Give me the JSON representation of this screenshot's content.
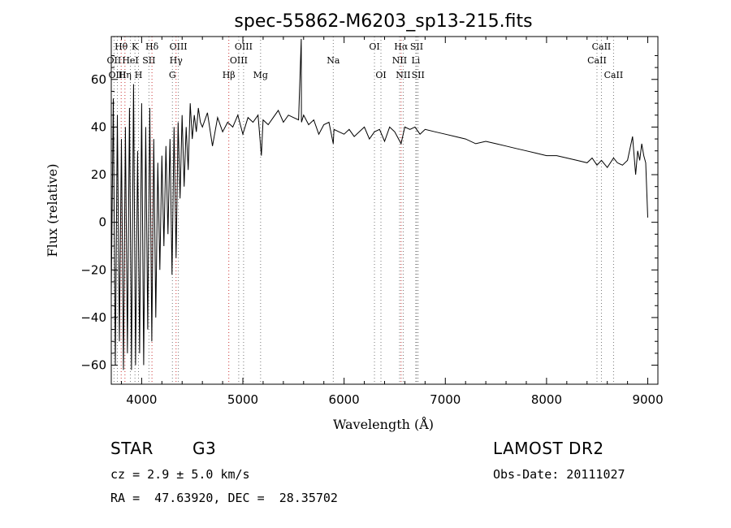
{
  "chart_data": {
    "type": "line",
    "title": "spec-55862-M6203_sp13-215.fits",
    "xlabel": "Wavelength (Å)",
    "ylabel": "Flux (relative)",
    "xlim": [
      3700,
      9100
    ],
    "ylim": [
      -68,
      78
    ],
    "x_ticks": [
      4000,
      5000,
      6000,
      7000,
      8000,
      9000
    ],
    "y_ticks": [
      -60,
      -40,
      -20,
      0,
      20,
      40,
      60
    ],
    "grid": false,
    "legend": "none",
    "series": [
      {
        "x": [
          3700,
          3720,
          3740,
          3760,
          3780,
          3800,
          3820,
          3840,
          3860,
          3880,
          3900,
          3920,
          3940,
          3960,
          3980,
          4000,
          4020,
          4040,
          4060,
          4080,
          4100,
          4120,
          4140,
          4160,
          4180,
          4200,
          4220,
          4240,
          4260,
          4280,
          4300,
          4320,
          4340,
          4360,
          4380,
          4400,
          4420,
          4440,
          4460,
          4480,
          4500,
          4520,
          4540,
          4560,
          4580,
          4600,
          4650,
          4700,
          4750,
          4800,
          4850,
          4900,
          4950,
          5000,
          5050,
          5100,
          5150,
          5183,
          5200,
          5250,
          5300,
          5350,
          5400,
          5450,
          5500,
          5550,
          5577,
          5578,
          5579,
          5600,
          5650,
          5700,
          5750,
          5800,
          5850,
          5893,
          5900,
          5950,
          6000,
          6050,
          6100,
          6150,
          6200,
          6250,
          6300,
          6350,
          6400,
          6450,
          6500,
          6563,
          6600,
          6650,
          6700,
          6750,
          6800,
          6900,
          7000,
          7100,
          7200,
          7300,
          7400,
          7500,
          7600,
          7700,
          7800,
          7900,
          8000,
          8100,
          8200,
          8300,
          8400,
          8450,
          8498,
          8542,
          8600,
          8662,
          8700,
          8750,
          8800,
          8850,
          8880,
          8900,
          8920,
          8940,
          8960,
          8980,
          9000
        ],
        "y": [
          -30,
          52,
          -60,
          45,
          -50,
          35,
          -62,
          40,
          -55,
          48,
          -62,
          58,
          -60,
          30,
          -55,
          50,
          -60,
          40,
          -45,
          48,
          -50,
          35,
          -40,
          25,
          -20,
          28,
          -10,
          32,
          -5,
          35,
          -22,
          40,
          -15,
          42,
          10,
          45,
          15,
          40,
          22,
          50,
          35,
          45,
          38,
          48,
          42,
          40,
          46,
          32,
          44,
          38,
          42,
          40,
          45,
          37,
          44,
          42,
          45,
          28,
          43,
          41,
          44,
          47,
          42,
          45,
          44,
          43,
          77,
          44,
          42,
          45,
          41,
          43,
          37,
          41,
          42,
          33,
          39,
          38,
          37,
          39,
          36,
          38,
          40,
          35,
          38,
          39,
          34,
          40,
          38,
          33,
          40,
          39,
          40,
          37,
          39,
          38,
          37,
          36,
          35,
          33,
          34,
          33,
          32,
          31,
          30,
          29,
          28,
          28,
          27,
          26,
          25,
          27,
          24,
          26,
          23,
          27,
          25,
          24,
          26,
          36,
          20,
          30,
          26,
          33,
          28,
          25,
          2
        ]
      }
    ],
    "line_markers": [
      {
        "label": "Hθ",
        "wl": 3798,
        "row": 0,
        "color": "#cc3333"
      },
      {
        "label": "OII",
        "wl": 3727,
        "row": 1,
        "color": "#777777"
      },
      {
        "label": "OIII",
        "wl": 3760,
        "row": 2,
        "color": "#777777"
      },
      {
        "label": "K",
        "wl": 3934,
        "row": 0,
        "color": "#777777"
      },
      {
        "label": "HeI",
        "wl": 3889,
        "row": 1,
        "color": "#777777"
      },
      {
        "label": "Hη",
        "wl": 3835,
        "row": 2,
        "color": "#cc3333"
      },
      {
        "label": "SII",
        "wl": 4072,
        "row": 1,
        "color": "#777777"
      },
      {
        "label": "H",
        "wl": 3969,
        "row": 2,
        "color": "#777777"
      },
      {
        "label": "Hδ",
        "wl": 4102,
        "row": 0,
        "color": "#cc3333"
      },
      {
        "label": "OIII",
        "wl": 4363,
        "row": 0,
        "color": "#777777"
      },
      {
        "label": "Hγ",
        "wl": 4340,
        "row": 1,
        "color": "#cc3333"
      },
      {
        "label": "G",
        "wl": 4304,
        "row": 2,
        "color": "#777777"
      },
      {
        "label": "OIII",
        "wl": 5007,
        "row": 0,
        "color": "#777777"
      },
      {
        "label": "OIII",
        "wl": 4959,
        "row": 1,
        "color": "#777777"
      },
      {
        "label": "Hβ",
        "wl": 4861,
        "row": 2,
        "color": "#cc3333"
      },
      {
        "label": "Mg",
        "wl": 5175,
        "row": 2,
        "color": "#777777"
      },
      {
        "label": "Na",
        "wl": 5893,
        "row": 1,
        "color": "#777777"
      },
      {
        "label": "OI",
        "wl": 6300,
        "row": 0,
        "color": "#777777"
      },
      {
        "label": "OI",
        "wl": 6364,
        "row": 2,
        "color": "#777777"
      },
      {
        "label": "Hα",
        "wl": 6563,
        "row": 0,
        "color": "#cc3333"
      },
      {
        "label": "SII",
        "wl": 6717,
        "row": 0,
        "color": "#777777"
      },
      {
        "label": "NII",
        "wl": 6548,
        "row": 1,
        "color": "#777777"
      },
      {
        "label": "Li",
        "wl": 6708,
        "row": 1,
        "color": "#777777"
      },
      {
        "label": "NII",
        "wl": 6584,
        "row": 2,
        "color": "#777777"
      },
      {
        "label": "SII",
        "wl": 6731,
        "row": 2,
        "color": "#777777"
      },
      {
        "label": "CaII",
        "wl": 8542,
        "row": 0,
        "color": "#777777"
      },
      {
        "label": "CaII",
        "wl": 8498,
        "row": 1,
        "color": "#777777"
      },
      {
        "label": "CaII",
        "wl": 8662,
        "row": 2,
        "color": "#777777"
      }
    ]
  },
  "info": {
    "class_label": "STAR",
    "subclass": "G3",
    "survey": "LAMOST DR2",
    "cz": "cz = 2.9 ± 5.0 km/s",
    "obs_date": "Obs-Date: 20111027",
    "coords": "RA =  47.63920, DEC =  28.35702"
  }
}
